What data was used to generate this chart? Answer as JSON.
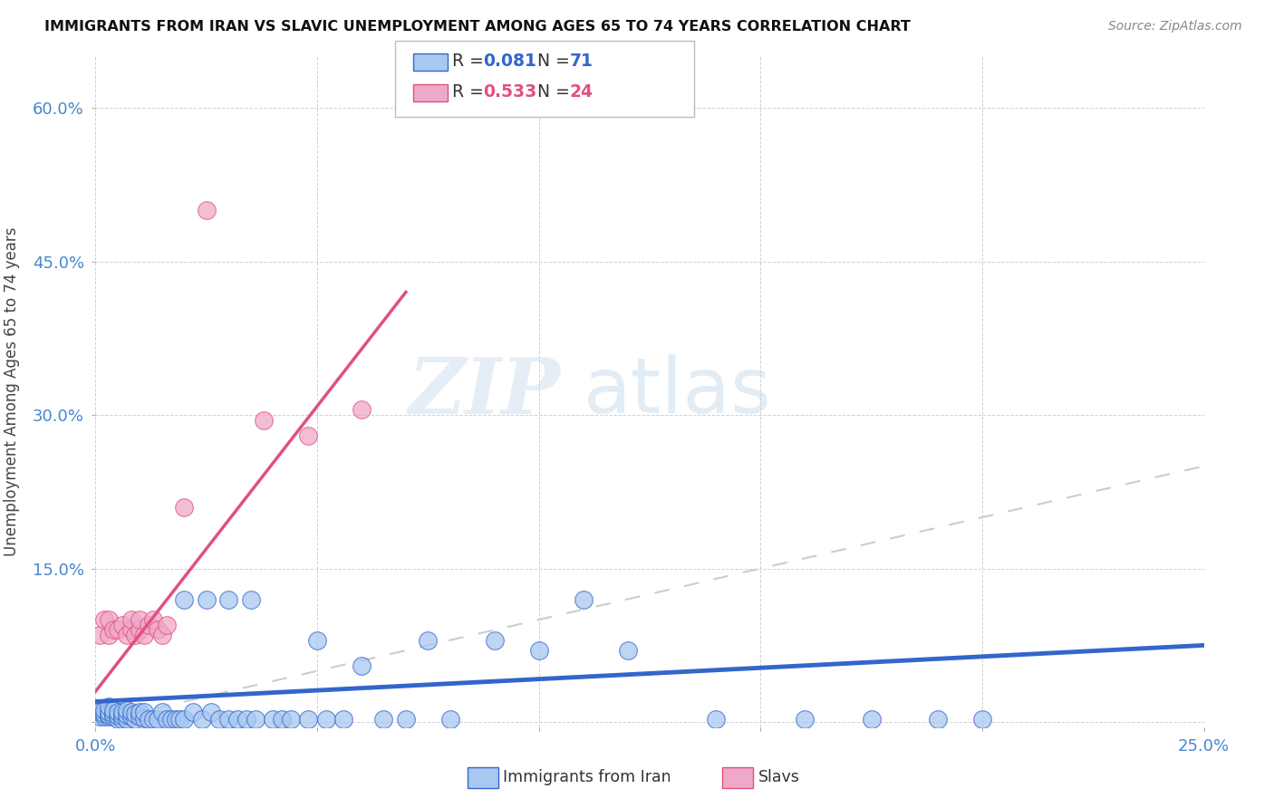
{
  "title": "IMMIGRANTS FROM IRAN VS SLAVIC UNEMPLOYMENT AMONG AGES 65 TO 74 YEARS CORRELATION CHART",
  "source": "Source: ZipAtlas.com",
  "ylabel": "Unemployment Among Ages 65 to 74 years",
  "xlim": [
    0.0,
    0.25
  ],
  "ylim": [
    -0.005,
    0.65
  ],
  "xticks": [
    0.0,
    0.05,
    0.1,
    0.15,
    0.2,
    0.25
  ],
  "yticks": [
    0.0,
    0.15,
    0.3,
    0.45,
    0.6
  ],
  "xticklabels": [
    "0.0%",
    "",
    "",
    "",
    "",
    "25.0%"
  ],
  "yticklabels": [
    "",
    "15.0%",
    "30.0%",
    "45.0%",
    "60.0%"
  ],
  "iran_R": 0.081,
  "iran_N": 71,
  "slav_R": 0.533,
  "slav_N": 24,
  "iran_color": "#a8c8f0",
  "slav_color": "#f0a8c8",
  "iran_line_color": "#3366cc",
  "slav_line_color": "#e05080",
  "diag_line_color": "#cccccc",
  "background_color": "#ffffff",
  "watermark_zip": "ZIP",
  "watermark_atlas": "atlas",
  "iran_scatter_x": [
    0.001,
    0.001,
    0.002,
    0.002,
    0.002,
    0.003,
    0.003,
    0.003,
    0.003,
    0.004,
    0.004,
    0.004,
    0.005,
    0.005,
    0.005,
    0.006,
    0.006,
    0.006,
    0.007,
    0.007,
    0.007,
    0.008,
    0.008,
    0.009,
    0.009,
    0.01,
    0.01,
    0.011,
    0.011,
    0.012,
    0.013,
    0.014,
    0.015,
    0.016,
    0.017,
    0.018,
    0.019,
    0.02,
    0.022,
    0.024,
    0.026,
    0.028,
    0.03,
    0.032,
    0.034,
    0.036,
    0.04,
    0.042,
    0.044,
    0.048,
    0.05,
    0.052,
    0.056,
    0.06,
    0.065,
    0.07,
    0.075,
    0.08,
    0.09,
    0.1,
    0.11,
    0.12,
    0.14,
    0.16,
    0.175,
    0.19,
    0.2,
    0.02,
    0.025,
    0.03,
    0.035
  ],
  "iran_scatter_y": [
    0.005,
    0.01,
    0.005,
    0.008,
    0.012,
    0.005,
    0.007,
    0.01,
    0.015,
    0.005,
    0.008,
    0.012,
    0.003,
    0.006,
    0.01,
    0.003,
    0.006,
    0.01,
    0.003,
    0.007,
    0.012,
    0.005,
    0.01,
    0.003,
    0.008,
    0.005,
    0.01,
    0.004,
    0.01,
    0.003,
    0.003,
    0.003,
    0.01,
    0.003,
    0.003,
    0.003,
    0.003,
    0.003,
    0.01,
    0.003,
    0.01,
    0.003,
    0.003,
    0.003,
    0.003,
    0.003,
    0.003,
    0.003,
    0.003,
    0.003,
    0.08,
    0.003,
    0.003,
    0.055,
    0.003,
    0.003,
    0.08,
    0.003,
    0.08,
    0.07,
    0.12,
    0.07,
    0.003,
    0.003,
    0.003,
    0.003,
    0.003,
    0.12,
    0.12,
    0.12,
    0.12
  ],
  "slav_scatter_x": [
    0.001,
    0.002,
    0.003,
    0.003,
    0.004,
    0.005,
    0.006,
    0.007,
    0.008,
    0.008,
    0.009,
    0.01,
    0.01,
    0.011,
    0.012,
    0.013,
    0.014,
    0.015,
    0.016,
    0.02,
    0.025,
    0.038,
    0.048,
    0.06
  ],
  "slav_scatter_y": [
    0.085,
    0.1,
    0.085,
    0.1,
    0.09,
    0.09,
    0.095,
    0.085,
    0.09,
    0.1,
    0.085,
    0.09,
    0.1,
    0.085,
    0.095,
    0.1,
    0.09,
    0.085,
    0.095,
    0.21,
    0.5,
    0.295,
    0.28,
    0.305
  ],
  "iran_line_x": [
    0.0,
    0.25
  ],
  "iran_line_y": [
    0.02,
    0.075
  ],
  "slav_line_x": [
    0.0,
    0.07
  ],
  "slav_line_y": [
    0.03,
    0.42
  ]
}
